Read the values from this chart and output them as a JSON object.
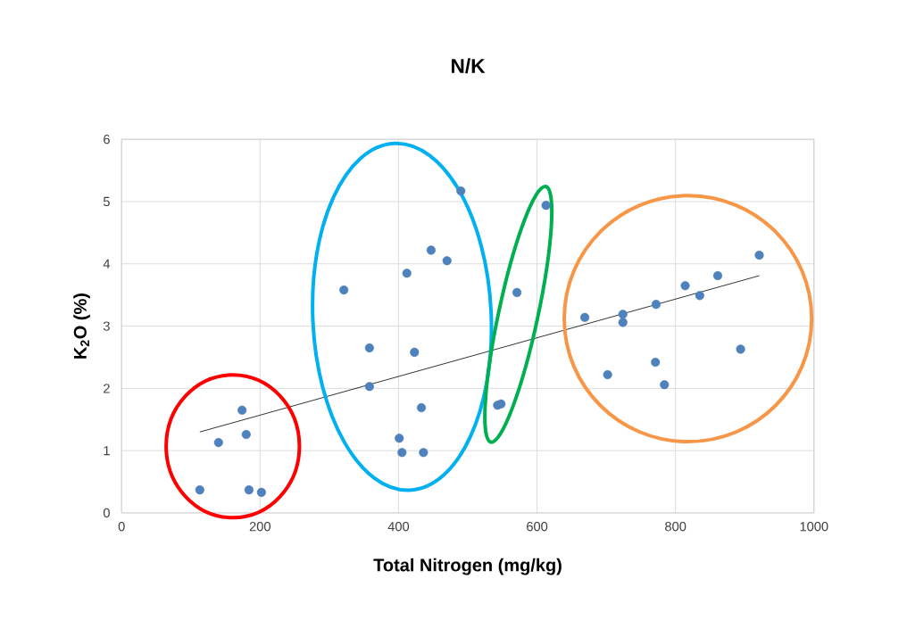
{
  "chart_data": {
    "type": "scatter",
    "title": "N/K",
    "xlabel": "Total Nitrogen (mg/kg)",
    "ylabel": "K$_{2}$O (%)",
    "xlim": [
      0,
      1000
    ],
    "xticks": [
      0,
      200,
      400,
      600,
      800,
      1000
    ],
    "ylim": [
      0,
      6
    ],
    "yticks": [
      0,
      1,
      2,
      3,
      4,
      5,
      6
    ],
    "grid": true,
    "series": [
      {
        "type": "scatter",
        "marker": "circle",
        "color": "#4f81bd",
        "x": [
          113,
          140,
          174,
          180,
          184,
          202,
          321,
          358,
          358,
          401,
          405,
          412,
          423,
          433,
          436,
          447,
          470,
          490,
          543,
          548,
          571,
          613,
          669,
          702,
          724,
          724,
          772,
          771,
          784,
          814,
          835,
          861,
          894,
          921
        ],
        "values": [
          0.37,
          1.13,
          1.65,
          1.26,
          0.37,
          0.33,
          3.58,
          2.03,
          2.65,
          1.2,
          0.97,
          3.85,
          2.58,
          1.69,
          0.97,
          4.22,
          4.05,
          5.17,
          1.73,
          1.75,
          3.54,
          4.94,
          3.14,
          2.22,
          3.19,
          3.06,
          3.35,
          2.42,
          2.06,
          3.65,
          3.49,
          3.81,
          2.63,
          4.14
        ]
      },
      {
        "type": "line",
        "color": "#000000",
        "x": [
          113,
          921
        ],
        "values": [
          1.3,
          3.81
        ]
      }
    ]
  }
}
